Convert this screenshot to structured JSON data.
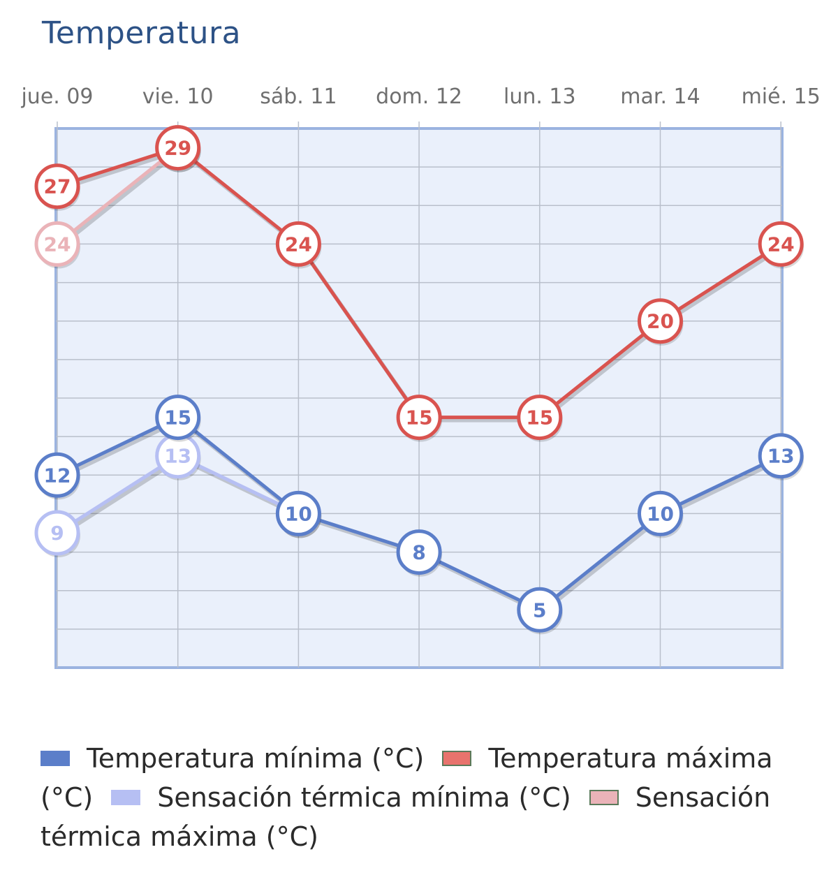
{
  "page": {
    "title": "Temperatura"
  },
  "chart_data": {
    "type": "line",
    "title": "Temperatura",
    "categories": [
      "jue. 09",
      "vie. 10",
      "sáb. 11",
      "dom. 12",
      "lun. 13",
      "mar. 14",
      "mié. 15"
    ],
    "ylim": [
      2,
      30
    ],
    "grid": true,
    "legend_position": "bottom",
    "series": [
      {
        "name": "Temperatura mínima (°C)",
        "key": "tmin",
        "color": "#5b7ec9",
        "values": [
          12,
          15,
          10,
          8,
          5,
          10,
          13
        ]
      },
      {
        "name": "Temperatura máxima (°C)",
        "key": "tmax",
        "color": "#d9534f",
        "values": [
          27,
          29,
          24,
          15,
          15,
          20,
          24
        ]
      },
      {
        "name": "Sensación térmica mínima (°C)",
        "key": "smin",
        "color": "#b6bff3",
        "values": [
          9,
          13,
          10,
          null,
          null,
          null,
          null
        ]
      },
      {
        "name": "Sensación térmica máxima (°C)",
        "key": "smax",
        "color": "#eab3b8",
        "values": [
          24,
          29,
          null,
          null,
          null,
          null,
          null
        ]
      }
    ]
  }
}
